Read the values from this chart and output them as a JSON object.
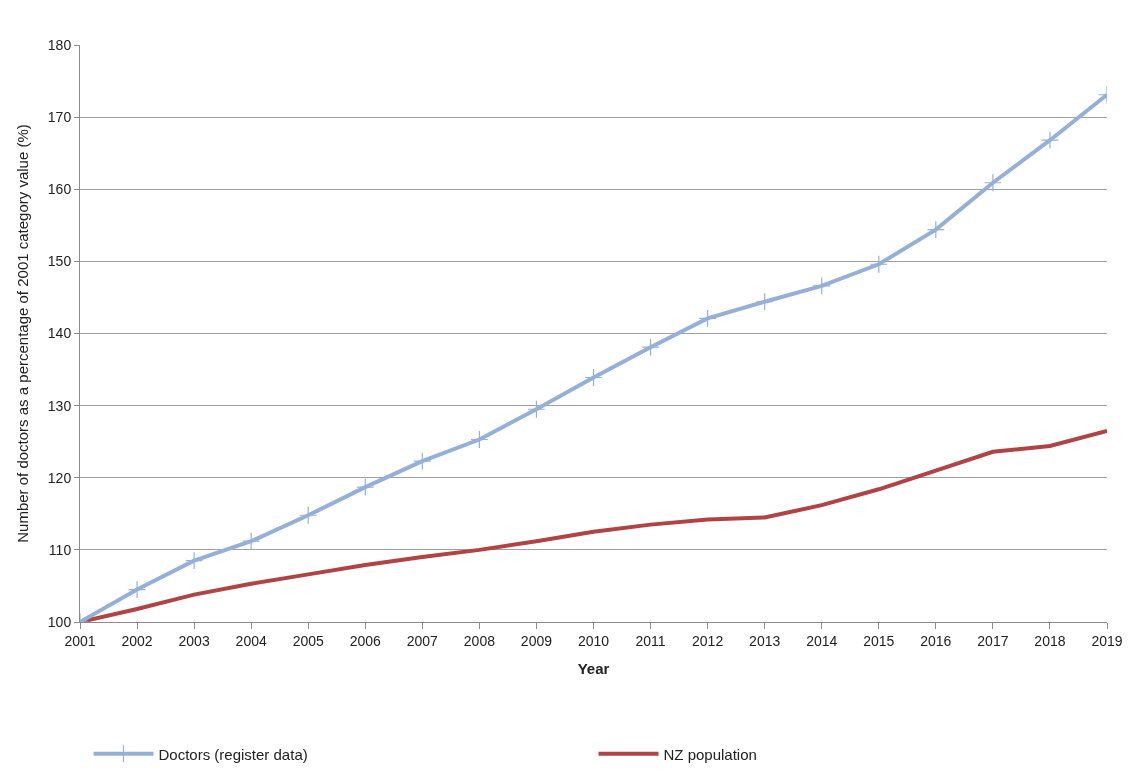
{
  "chart_data": {
    "type": "line",
    "xlabel": "Year",
    "ylabel": "Number of doctors as a percentage of 2001 category value (%)",
    "categories": [
      "2001",
      "2002",
      "2003",
      "2004",
      "2005",
      "2006",
      "2007",
      "2008",
      "2009",
      "2010",
      "2011",
      "2012",
      "2013",
      "2014",
      "2015",
      "2016",
      "2017",
      "2018",
      "2019"
    ],
    "series": [
      {
        "name": "Doctors (register data)",
        "color": "#95b0d8",
        "marker": "cross",
        "values": [
          100,
          104.5,
          108.5,
          111.2,
          114.8,
          118.7,
          122.3,
          125.3,
          129.5,
          133.9,
          138.1,
          142.1,
          144.4,
          146.6,
          149.6,
          154.4,
          160.9,
          166.8,
          173.1
        ]
      },
      {
        "name": "NZ population",
        "color": "#b04444",
        "marker": "none",
        "values": [
          100,
          101.8,
          103.8,
          105.3,
          106.6,
          107.9,
          109.0,
          110.0,
          111.2,
          112.5,
          113.5,
          114.2,
          114.5,
          116.2,
          118.4,
          121.0,
          123.6,
          124.4,
          126.5
        ]
      }
    ],
    "ylim": [
      100,
      180
    ],
    "yticks": [
      100,
      110,
      120,
      130,
      140,
      150,
      160,
      170,
      180
    ],
    "grid": "y",
    "legend": "bottom"
  }
}
